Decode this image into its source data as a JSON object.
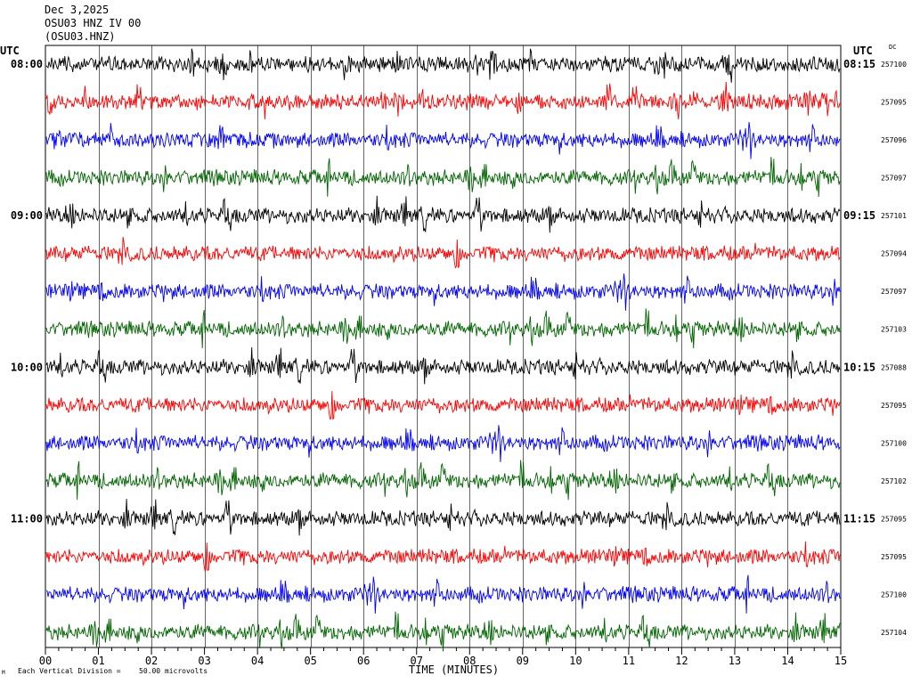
{
  "header": {
    "date": "Dec 3,2025",
    "station": "OSU03 HNZ IV 00",
    "channel": "(OSU03.HNZ)"
  },
  "axis": {
    "left_tz": "UTC",
    "right_tz": "UTC",
    "dc_label": "DC",
    "xlabel": "TIME (MINUTES)"
  },
  "footer": {
    "division_label": "Each Vertical Division =",
    "division_value": "50.00 microvolts",
    "corner_mark": "M"
  },
  "colors": {
    "black": "#000000",
    "red": "#ff0000",
    "blue": "#0000ff",
    "green": "#006400",
    "grid": "#000000"
  },
  "chart_data": {
    "type": "line",
    "title": "OSU03 HNZ IV 00",
    "xlabel": "TIME (MINUTES)",
    "xlim": [
      0,
      15
    ],
    "x_ticks": [
      "00",
      "01",
      "02",
      "03",
      "04",
      "05",
      "06",
      "07",
      "08",
      "09",
      "10",
      "11",
      "12",
      "13",
      "14",
      "15"
    ],
    "color_cycle": [
      "black",
      "red",
      "blue",
      "green"
    ],
    "traces": [
      {
        "left_time": "08:00",
        "right_time": "08:15",
        "dc": "257100"
      },
      {
        "left_time": "",
        "right_time": "",
        "dc": "257095"
      },
      {
        "left_time": "",
        "right_time": "",
        "dc": "257096"
      },
      {
        "left_time": "",
        "right_time": "",
        "dc": "257097"
      },
      {
        "left_time": "09:00",
        "right_time": "09:15",
        "dc": "257101"
      },
      {
        "left_time": "",
        "right_time": "",
        "dc": "257094"
      },
      {
        "left_time": "",
        "right_time": "",
        "dc": "257097"
      },
      {
        "left_time": "",
        "right_time": "",
        "dc": "257103"
      },
      {
        "left_time": "10:00",
        "right_time": "10:15",
        "dc": "257088"
      },
      {
        "left_time": "",
        "right_time": "",
        "dc": "257095"
      },
      {
        "left_time": "",
        "right_time": "",
        "dc": "257100"
      },
      {
        "left_time": "",
        "right_time": "",
        "dc": "257102"
      },
      {
        "left_time": "11:00",
        "right_time": "11:15",
        "dc": "257095"
      },
      {
        "left_time": "",
        "right_time": "",
        "dc": "257095"
      },
      {
        "left_time": "",
        "right_time": "",
        "dc": "257100"
      },
      {
        "left_time": "",
        "right_time": "",
        "dc": "257104"
      }
    ]
  }
}
